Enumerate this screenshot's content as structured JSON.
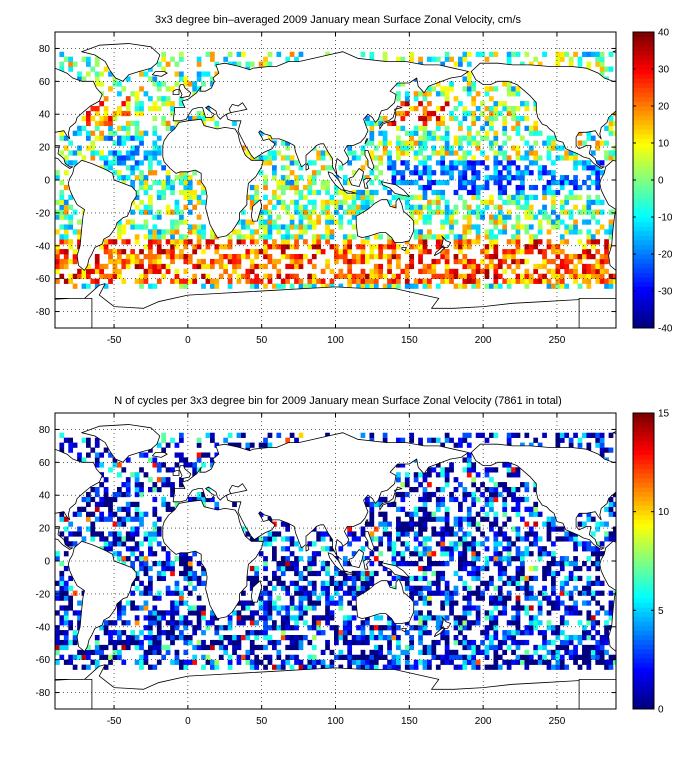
{
  "chart_data": [
    {
      "type": "heatmap",
      "title": "3x3 degree bin–averaged 2009 January mean Surface Zonal Velocity, cm/s",
      "xlabel": "",
      "ylabel": "",
      "xlim": [
        -90,
        290
      ],
      "ylim": [
        -90,
        90
      ],
      "xticks": [
        -50,
        0,
        50,
        100,
        150,
        200,
        250
      ],
      "yticks": [
        -80,
        -60,
        -40,
        -20,
        0,
        20,
        40,
        60,
        80
      ],
      "grid": "dotted",
      "bin_size_deg": 3,
      "colormap": "jet",
      "colorbar": {
        "range": [
          -40,
          40
        ],
        "ticks": [
          -40,
          -30,
          -20,
          -10,
          0,
          10,
          20,
          30,
          40
        ],
        "placement": "right"
      },
      "note": "Each colored cell is one 3x3 degree bin; values are approximate readings of the depicted field."
    },
    {
      "type": "heatmap",
      "title": "N of cycles per 3x3 degree bin for 2009 January mean Surface Zonal Velocity (7861 in total)",
      "xlabel": "",
      "ylabel": "",
      "xlim": [
        -90,
        290
      ],
      "ylim": [
        -90,
        90
      ],
      "xticks": [
        -50,
        0,
        50,
        100,
        150,
        200,
        250
      ],
      "yticks": [
        -80,
        -60,
        -40,
        -20,
        0,
        20,
        40,
        60,
        80
      ],
      "grid": "dotted",
      "bin_size_deg": 3,
      "colormap": "jet",
      "colorbar": {
        "range": [
          0,
          15
        ],
        "ticks": [
          0,
          5,
          10,
          15
        ],
        "placement": "right"
      },
      "total_cycles": 7861
    }
  ],
  "colors": {
    "axis": "#000000",
    "background": "#ffffff",
    "land_outline": "#000000"
  }
}
